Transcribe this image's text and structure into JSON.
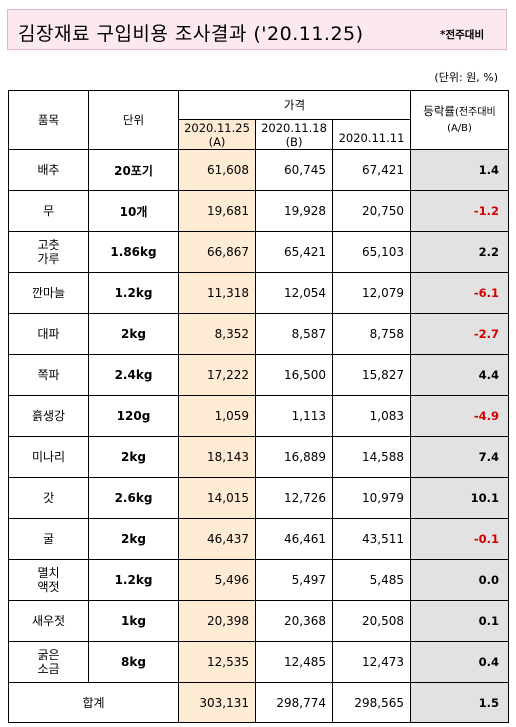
{
  "title": {
    "main": "김장재료 구입비용 조사결과 ('20.11.25)",
    "note": "*전주대비"
  },
  "unit_note": "(단위: 원, %)",
  "headers": {
    "item": "품목",
    "unit": "단위",
    "price": "가격",
    "curr_date": "2020.11.25",
    "curr_tag": "(A)",
    "prev_date": "2020.11.18",
    "prev_tag": "(B)",
    "old_date": "2020.11.11",
    "rate": "등락률",
    "rate_note": "(전주대비",
    "rate_tag": "(A/B)"
  },
  "rows": [
    {
      "item_lines": [
        "배추"
      ],
      "unit": "20포기",
      "curr": "61,608",
      "prev": "60,745",
      "old": "67,421",
      "rate": "1.4"
    },
    {
      "item_lines": [
        "무"
      ],
      "unit": "10개",
      "curr": "19,681",
      "prev": "19,928",
      "old": "20,750",
      "rate": "-1.2"
    },
    {
      "item_lines": [
        "고춧",
        "가루"
      ],
      "unit": "1.86kg",
      "curr": "66,867",
      "prev": "65,421",
      "old": "65,103",
      "rate": "2.2"
    },
    {
      "item_lines": [
        "깐마늘"
      ],
      "unit": "1.2kg",
      "curr": "11,318",
      "prev": "12,054",
      "old": "12,079",
      "rate": "-6.1"
    },
    {
      "item_lines": [
        "대파"
      ],
      "unit": "2kg",
      "curr": "8,352",
      "prev": "8,587",
      "old": "8,758",
      "rate": "-2.7"
    },
    {
      "item_lines": [
        "쪽파"
      ],
      "unit": "2.4kg",
      "curr": "17,222",
      "prev": "16,500",
      "old": "15,827",
      "rate": "4.4"
    },
    {
      "item_lines": [
        "흙생강"
      ],
      "unit": "120g",
      "curr": "1,059",
      "prev": "1,113",
      "old": "1,083",
      "rate": "-4.9"
    },
    {
      "item_lines": [
        "미나리"
      ],
      "unit": "2kg",
      "curr": "18,143",
      "prev": "16,889",
      "old": "14,588",
      "rate": "7.4"
    },
    {
      "item_lines": [
        "갓"
      ],
      "unit": "2.6kg",
      "curr": "14,015",
      "prev": "12,726",
      "old": "10,979",
      "rate": "10.1"
    },
    {
      "item_lines": [
        "굴"
      ],
      "unit": "2kg",
      "curr": "46,437",
      "prev": "46,461",
      "old": "43,511",
      "rate": "-0.1"
    },
    {
      "item_lines": [
        "멸치",
        "액젓"
      ],
      "unit": "1.2kg",
      "curr": "5,496",
      "prev": "5,497",
      "old": "5,485",
      "rate": "0.0"
    },
    {
      "item_lines": [
        "새우젓"
      ],
      "unit": "1kg",
      "curr": "20,398",
      "prev": "20,368",
      "old": "20,508",
      "rate": "0.1"
    },
    {
      "item_lines": [
        "굵은",
        "소금"
      ],
      "unit": "8kg",
      "curr": "12,535",
      "prev": "12,485",
      "old": "12,473",
      "rate": "0.4"
    }
  ],
  "total": {
    "label": "합계",
    "curr": "303,131",
    "prev": "298,774",
    "old": "298,565",
    "rate": "1.5"
  }
}
